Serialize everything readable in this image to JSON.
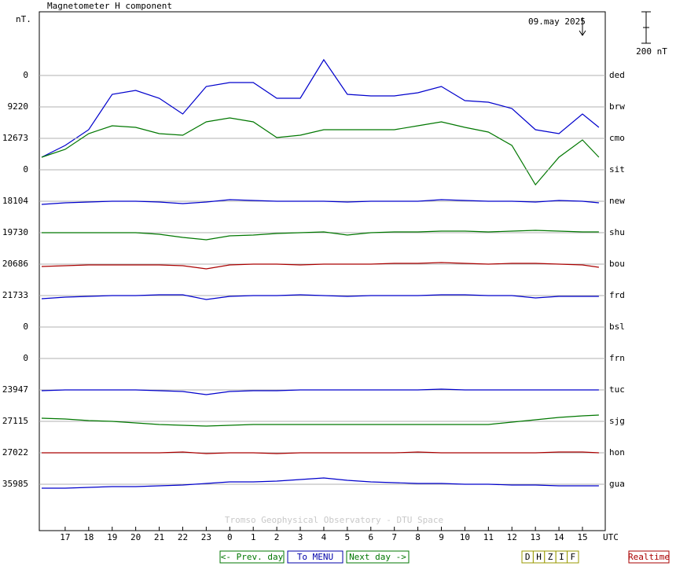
{
  "chart_data": {
    "type": "stackplot",
    "title": "Magnetometer H component",
    "y_unit": "nT.",
    "date": "09.may 2025",
    "x_unit": "UTC",
    "scale_bar": {
      "value": 200,
      "label": "200 nT"
    },
    "xlim": [
      15.9,
      39.97
    ],
    "xticks": [
      17,
      18,
      19,
      20,
      21,
      22,
      23,
      {
        "value": 24,
        "label": "0"
      },
      {
        "value": 25,
        "label": "1"
      },
      {
        "value": 26,
        "label": "2"
      },
      {
        "value": 27,
        "label": "3"
      },
      {
        "value": 28,
        "label": "4"
      },
      {
        "value": 29,
        "label": "5"
      },
      {
        "value": 30,
        "label": "6"
      },
      {
        "value": 31,
        "label": "7"
      },
      {
        "value": 32,
        "label": "8"
      },
      {
        "value": 33,
        "label": "9"
      },
      {
        "value": 34,
        "label": "10"
      },
      {
        "value": 35,
        "label": "11"
      },
      {
        "value": 36,
        "label": "12"
      },
      {
        "value": 37,
        "label": "13"
      },
      {
        "value": 38,
        "label": "14"
      },
      {
        "value": 39,
        "label": "15"
      }
    ],
    "x": [
      16,
      17,
      18,
      19,
      20,
      21,
      22,
      23,
      24,
      25,
      26,
      27,
      28,
      29,
      30,
      31,
      32,
      33,
      34,
      35,
      36,
      37,
      38,
      39,
      39.7
    ],
    "series": [
      {
        "name": "ded",
        "baseline": 0,
        "color": "#0000cc",
        "values": [
          null,
          null,
          null,
          null,
          null,
          null,
          null,
          null,
          null,
          null,
          null,
          null,
          null,
          null,
          null,
          null,
          null,
          null,
          null,
          null,
          null,
          null,
          null,
          null,
          null
        ]
      },
      {
        "name": "brw",
        "baseline": 9220,
        "color": "#0000cc",
        "values": [
          -320,
          -245,
          -145,
          80,
          105,
          55,
          -45,
          130,
          155,
          155,
          55,
          55,
          300,
          80,
          70,
          70,
          90,
          130,
          40,
          30,
          -10,
          -145,
          -170,
          -45,
          -130
        ]
      },
      {
        "name": "cmo",
        "baseline": 12673,
        "color": "#007700",
        "values": [
          -120,
          -70,
          30,
          80,
          70,
          30,
          20,
          105,
          130,
          105,
          5,
          20,
          55,
          55,
          55,
          55,
          80,
          105,
          70,
          40,
          -45,
          -295,
          -120,
          -10,
          -120
        ]
      },
      {
        "name": "sit",
        "baseline": 0,
        "color": "#0000cc",
        "values": [
          null,
          null,
          null,
          null,
          null,
          null,
          null,
          null,
          null,
          null,
          null,
          null,
          null,
          null,
          null,
          null,
          null,
          null,
          null,
          null,
          null,
          null,
          null,
          null,
          null
        ]
      },
      {
        "name": "new",
        "baseline": 18104,
        "color": "#0000cc",
        "values": [
          -20,
          -10,
          -5,
          0,
          0,
          -5,
          -15,
          -5,
          10,
          5,
          0,
          0,
          0,
          -5,
          0,
          0,
          0,
          10,
          5,
          0,
          0,
          -5,
          5,
          0,
          -10
        ]
      },
      {
        "name": "shu",
        "baseline": 19730,
        "color": "#007700",
        "values": [
          0,
          0,
          0,
          0,
          0,
          -10,
          -30,
          -45,
          -20,
          -15,
          -5,
          0,
          5,
          -15,
          0,
          5,
          5,
          10,
          10,
          5,
          10,
          15,
          10,
          5,
          5
        ]
      },
      {
        "name": "bou",
        "baseline": 20686,
        "color": "#aa0000",
        "values": [
          -15,
          -10,
          -5,
          -5,
          -5,
          -5,
          -10,
          -30,
          -5,
          0,
          0,
          -5,
          0,
          0,
          0,
          5,
          5,
          10,
          5,
          0,
          5,
          5,
          0,
          -5,
          -20
        ]
      },
      {
        "name": "frd",
        "baseline": 21733,
        "color": "#0000cc",
        "values": [
          -20,
          -10,
          -5,
          0,
          0,
          5,
          5,
          -25,
          -5,
          0,
          0,
          5,
          0,
          -5,
          0,
          0,
          0,
          5,
          5,
          0,
          0,
          -15,
          -5,
          -5,
          -5
        ]
      },
      {
        "name": "bsl",
        "baseline": 0,
        "color": "#0000cc",
        "values": [
          null,
          null,
          null,
          null,
          null,
          null,
          null,
          null,
          null,
          null,
          null,
          null,
          null,
          null,
          null,
          null,
          null,
          null,
          null,
          null,
          null,
          null,
          null,
          null,
          null
        ]
      },
      {
        "name": "frn",
        "baseline": 0,
        "color": "#0000cc",
        "values": [
          null,
          null,
          null,
          null,
          null,
          null,
          null,
          null,
          null,
          null,
          null,
          null,
          null,
          null,
          null,
          null,
          null,
          null,
          null,
          null,
          null,
          null,
          null,
          null,
          null
        ]
      },
      {
        "name": "tuc",
        "baseline": 23947,
        "color": "#0000cc",
        "values": [
          -5,
          0,
          0,
          0,
          0,
          -5,
          -10,
          -30,
          -10,
          -5,
          -5,
          0,
          0,
          0,
          0,
          0,
          0,
          5,
          0,
          0,
          0,
          0,
          0,
          0,
          0
        ]
      },
      {
        "name": "sjg",
        "baseline": 27115,
        "color": "#007700",
        "values": [
          20,
          15,
          5,
          0,
          -10,
          -20,
          -25,
          -30,
          -25,
          -20,
          -20,
          -20,
          -20,
          -20,
          -20,
          -20,
          -20,
          -20,
          -20,
          -20,
          -5,
          10,
          25,
          35,
          40
        ]
      },
      {
        "name": "hon",
        "baseline": 27022,
        "color": "#aa0000",
        "values": [
          0,
          0,
          0,
          0,
          0,
          0,
          5,
          -5,
          0,
          0,
          -5,
          0,
          0,
          0,
          0,
          0,
          5,
          0,
          0,
          0,
          0,
          0,
          5,
          5,
          0
        ]
      },
      {
        "name": "gua",
        "baseline": 35985,
        "color": "#0000cc",
        "values": [
          -25,
          -25,
          -20,
          -15,
          -15,
          -10,
          -5,
          5,
          15,
          15,
          20,
          30,
          40,
          25,
          15,
          10,
          5,
          5,
          0,
          0,
          -5,
          -5,
          -10,
          -10,
          -10
        ]
      }
    ]
  },
  "footer": "Tromso Geophysical Observatory - DTU Space",
  "controls": {
    "prev": "<- Prev. day",
    "menu": "To MENU",
    "next": "Next day ->",
    "components": [
      "D",
      "H",
      "Z",
      "I",
      "F"
    ],
    "realtime": "Realtime"
  }
}
